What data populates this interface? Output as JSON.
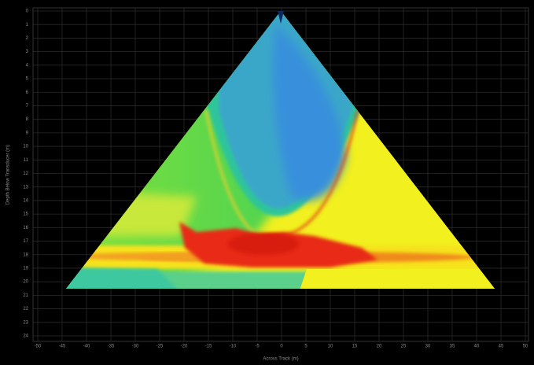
{
  "chart_data": {
    "type": "image",
    "x_label": "Across Track (m)",
    "y_label": "Depth Below Transducer (m)",
    "xlim": [
      -50,
      50
    ],
    "xticks": [
      -50,
      -45,
      -40,
      -35,
      -30,
      -25,
      -20,
      -15,
      -10,
      -5,
      0,
      5,
      10,
      15,
      20,
      25,
      30,
      35,
      40,
      45,
      50
    ],
    "ylim": [
      0,
      24
    ],
    "yticks": [
      0,
      1,
      2,
      3,
      4,
      5,
      6,
      7,
      8,
      9,
      10,
      11,
      12,
      13,
      14,
      15,
      16,
      17,
      18,
      19,
      20,
      21,
      22,
      23,
      24
    ],
    "grid": true
  }
}
